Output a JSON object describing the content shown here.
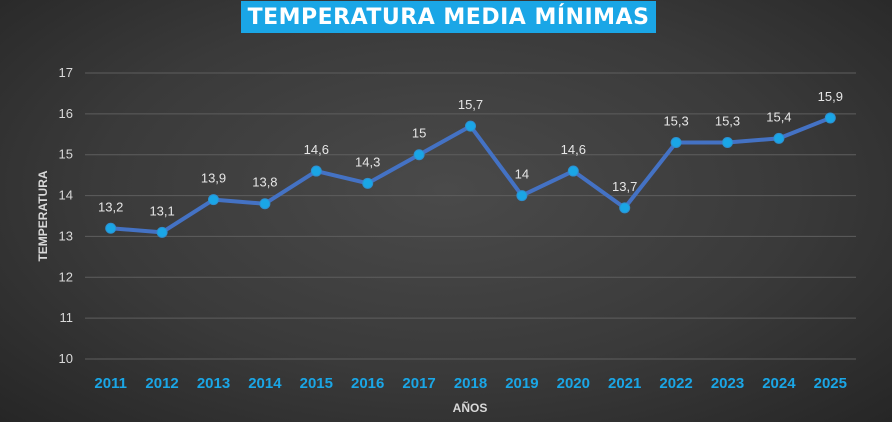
{
  "chart_data": {
    "type": "line",
    "title": "TEMPERATURA MEDIA MÍNIMAS",
    "xlabel": "AÑOS",
    "ylabel": "TEMPERATURA",
    "categories": [
      "2011",
      "2012",
      "2013",
      "2014",
      "2015",
      "2016",
      "2017",
      "2018",
      "2019",
      "2020",
      "2021",
      "2022",
      "2023",
      "2024",
      "2025"
    ],
    "series": [
      {
        "values": [
          13.2,
          13.1,
          13.9,
          13.8,
          14.6,
          14.3,
          15,
          15.7,
          14,
          14.6,
          13.7,
          15.3,
          15.3,
          15.4,
          15.9
        ],
        "labels": [
          "13,2",
          "13,1",
          "13,9",
          "13,8",
          "14,6",
          "14,3",
          "15",
          "15,7",
          "14",
          "14,6",
          "13,7",
          "15,3",
          "15,3",
          "15,4",
          "15,9"
        ]
      }
    ],
    "ylim": [
      10,
      17
    ],
    "yticks": [
      "10",
      "11",
      "12",
      "13",
      "14",
      "15",
      "16",
      "17"
    ],
    "grid": true,
    "legend": "none",
    "colors": {
      "line": "#4472c4",
      "marker": "#1aa6e6",
      "title_bg": "#1aa6e6",
      "x_tick": "#1aa6e6",
      "grid": "#5e5e5e"
    }
  }
}
